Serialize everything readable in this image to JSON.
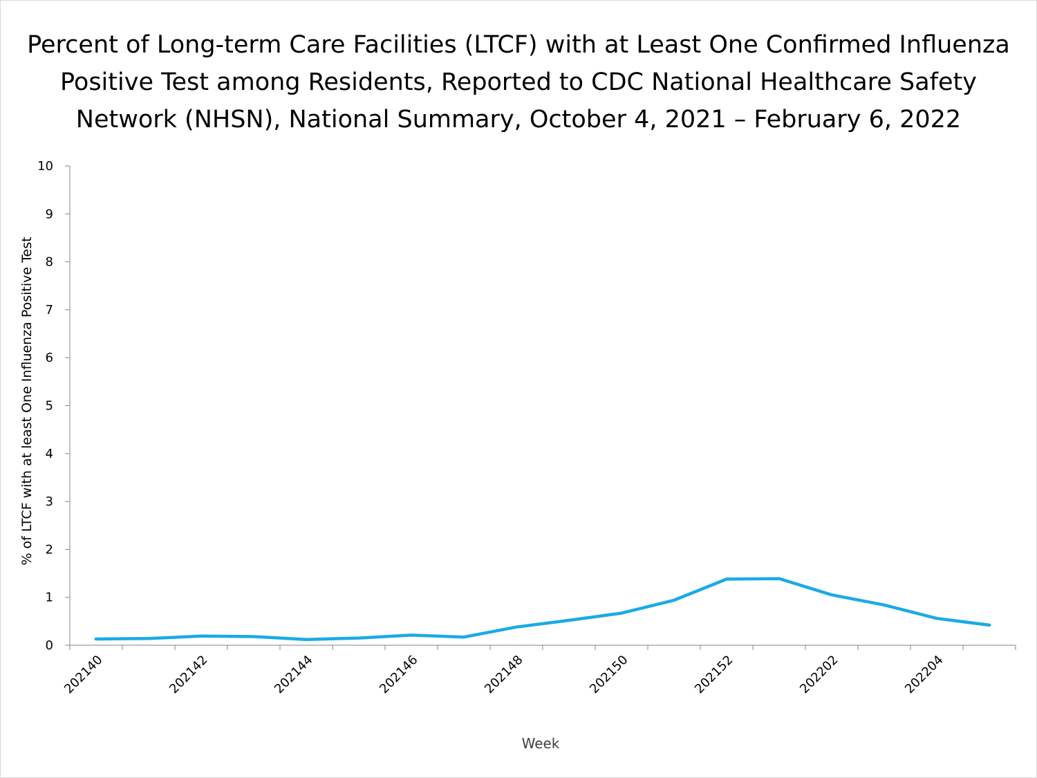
{
  "chart_data": {
    "type": "line",
    "title_lines": [
      "Percent of Long-term Care Facilities (LTCF) with at Least One Confirmed Influenza",
      "Positive Test among Residents, Reported to CDC National Healthcare Safety",
      "Network (NHSN), National Summary, October 4, 2021 – February 6, 2022"
    ],
    "xlabel": "Week",
    "ylabel": "% of LTCF with at least One Influenza Positive Test",
    "ylim": [
      0,
      10
    ],
    "yticks": [
      "0",
      "1",
      "2",
      "3",
      "4",
      "5",
      "6",
      "7",
      "8",
      "9",
      "10"
    ],
    "grid": false,
    "line_color": "#1aaae6",
    "x": [
      "202140",
      "202141",
      "202142",
      "202143",
      "202144",
      "202145",
      "202146",
      "202147",
      "202148",
      "202149",
      "202150",
      "202151",
      "202152",
      "202201",
      "202202",
      "202203",
      "202204",
      "202205"
    ],
    "x_tick_labels": [
      "202140",
      "202142",
      "202144",
      "202146",
      "202148",
      "202150",
      "202152",
      "202202",
      "202204"
    ],
    "series": [
      {
        "values": [
          0.13,
          0.14,
          0.19,
          0.18,
          0.12,
          0.15,
          0.21,
          0.17,
          0.38,
          0.52,
          0.67,
          0.94,
          1.38,
          1.39,
          1.05,
          0.84,
          0.56,
          0.42
        ]
      }
    ]
  }
}
